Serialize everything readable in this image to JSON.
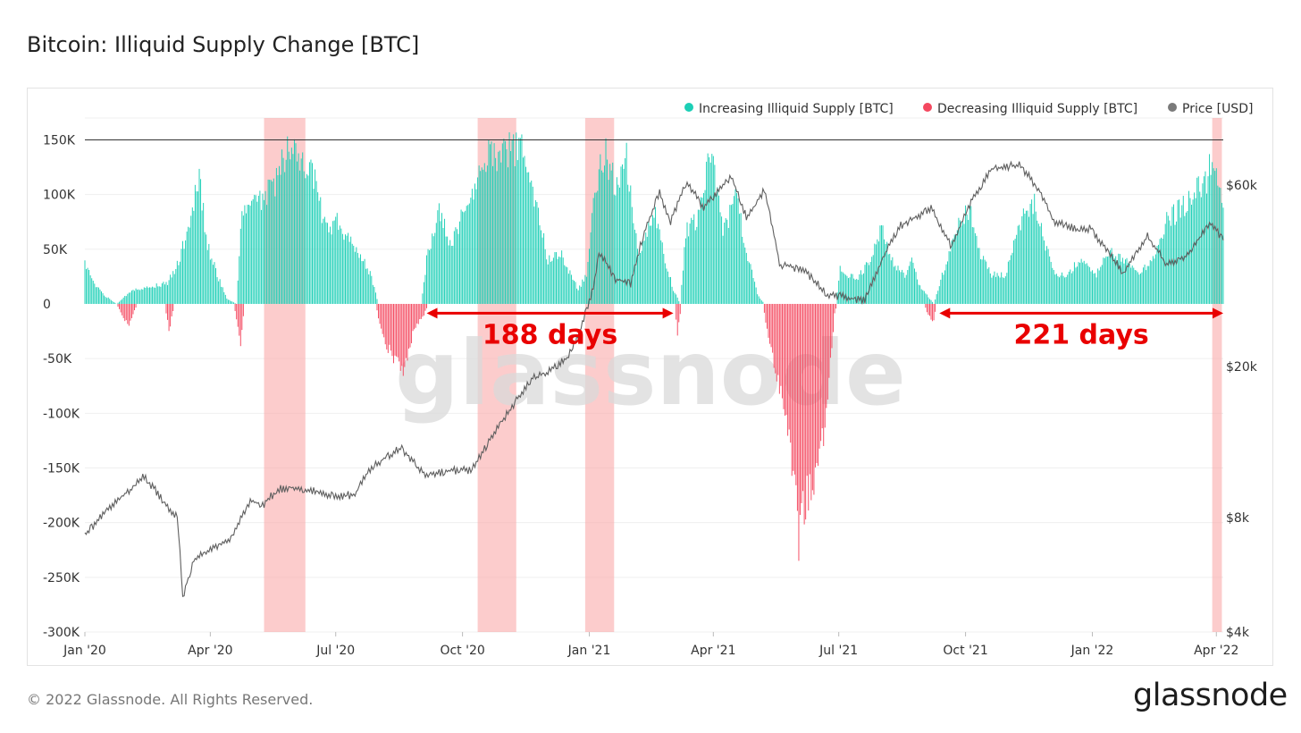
{
  "header": {
    "title": "Bitcoin: Illiquid Supply Change [BTC]"
  },
  "footer": {
    "copyright": "© 2022 Glassnode. All Rights Reserved.",
    "brand": "glassnode"
  },
  "watermark": "glassnode",
  "colors": {
    "increasing": "#1ccfb6",
    "decreasing": "#f4485f",
    "price": "#7a7a7a",
    "highlight": "#f9a3a3",
    "annotation": "#e90000"
  },
  "chart_data": {
    "type": "bar",
    "title": "Bitcoin: Illiquid Supply Change [BTC]",
    "x_range": [
      "2020-01-01",
      "2022-04-06"
    ],
    "x_ticks": [
      {
        "label": "Jan '20",
        "date": "2020-01-01"
      },
      {
        "label": "Apr '20",
        "date": "2020-04-01"
      },
      {
        "label": "Jul '20",
        "date": "2020-07-01"
      },
      {
        "label": "Oct '20",
        "date": "2020-10-01"
      },
      {
        "label": "Jan '21",
        "date": "2021-01-01"
      },
      {
        "label": "Apr '21",
        "date": "2021-04-01"
      },
      {
        "label": "Jul '21",
        "date": "2021-07-01"
      },
      {
        "label": "Oct '21",
        "date": "2021-10-01"
      },
      {
        "label": "Jan '22",
        "date": "2022-01-01"
      },
      {
        "label": "Apr '22",
        "date": "2022-04-01"
      }
    ],
    "y_left": {
      "range": [
        -300000,
        170000
      ],
      "ticks": [
        {
          "label": "150K",
          "value": 150000
        },
        {
          "label": "100K",
          "value": 100000
        },
        {
          "label": "50K",
          "value": 50000
        },
        {
          "label": "0",
          "value": 0
        },
        {
          "label": "-50K",
          "value": -50000
        },
        {
          "label": "-100K",
          "value": -100000
        },
        {
          "label": "-150K",
          "value": -150000
        },
        {
          "label": "-200K",
          "value": -200000
        },
        {
          "label": "-250K",
          "value": -250000
        },
        {
          "label": "-300K",
          "value": -300000
        }
      ]
    },
    "y_right": {
      "scale": "log",
      "range": [
        4000,
        90000
      ],
      "ticks": [
        {
          "label": "$60k",
          "value": 60000
        },
        {
          "label": "$20k",
          "value": 20000
        },
        {
          "label": "$8k",
          "value": 8000
        },
        {
          "label": "$4k",
          "value": 4000
        }
      ]
    },
    "reference_line": 150000,
    "legend_position": "top-right",
    "series": [
      {
        "name": "Increasing Illiquid Supply [BTC]",
        "kind": "bar",
        "anchors": [
          [
            "2020-01-01",
            40000
          ],
          [
            "2020-01-08",
            20000
          ],
          [
            "2020-01-16",
            8000
          ],
          [
            "2020-01-24",
            0
          ],
          [
            "2020-02-05",
            15000
          ],
          [
            "2020-02-20",
            18000
          ],
          [
            "2020-03-01",
            22000
          ],
          [
            "2020-03-10",
            45000
          ],
          [
            "2020-03-18",
            95000
          ],
          [
            "2020-03-24",
            125000
          ],
          [
            "2020-03-30",
            60000
          ],
          [
            "2020-04-06",
            30000
          ],
          [
            "2020-04-13",
            5000
          ],
          [
            "2020-04-20",
            0
          ],
          [
            "2020-04-24",
            95000
          ],
          [
            "2020-05-06",
            105000
          ],
          [
            "2020-05-18",
            125000
          ],
          [
            "2020-05-28",
            160000
          ],
          [
            "2020-06-08",
            145000
          ],
          [
            "2020-06-16",
            125000
          ],
          [
            "2020-06-24",
            75000
          ],
          [
            "2020-07-02",
            85000
          ],
          [
            "2020-07-14",
            60000
          ],
          [
            "2020-07-26",
            32000
          ],
          [
            "2020-08-01",
            0
          ],
          [
            "2020-09-01",
            0
          ],
          [
            "2020-09-05",
            45000
          ],
          [
            "2020-09-14",
            100000
          ],
          [
            "2020-09-22",
            60000
          ],
          [
            "2020-10-08",
            115000
          ],
          [
            "2020-10-20",
            150000
          ],
          [
            "2020-11-05",
            160000
          ],
          [
            "2020-11-15",
            160000
          ],
          [
            "2020-11-24",
            100000
          ],
          [
            "2020-12-02",
            45000
          ],
          [
            "2020-12-12",
            50000
          ],
          [
            "2020-12-24",
            15000
          ],
          [
            "2020-12-30",
            30000
          ],
          [
            "2021-01-04",
            100000
          ],
          [
            "2021-01-12",
            160000
          ],
          [
            "2021-01-20",
            120000
          ],
          [
            "2021-01-28",
            150000
          ],
          [
            "2021-02-06",
            50000
          ],
          [
            "2021-02-18",
            95000
          ],
          [
            "2021-02-26",
            40000
          ],
          [
            "2021-03-03",
            15000
          ],
          [
            "2021-03-08",
            0
          ],
          [
            "2021-03-12",
            75000
          ],
          [
            "2021-03-22",
            90000
          ],
          [
            "2021-03-30",
            155000
          ],
          [
            "2021-04-08",
            75000
          ],
          [
            "2021-04-18",
            110000
          ],
          [
            "2021-04-24",
            60000
          ],
          [
            "2021-05-03",
            10000
          ],
          [
            "2021-05-08",
            0
          ],
          [
            "2021-06-29",
            0
          ],
          [
            "2021-07-02",
            35000
          ],
          [
            "2021-07-14",
            25000
          ],
          [
            "2021-07-24",
            45000
          ],
          [
            "2021-08-01",
            80000
          ],
          [
            "2021-08-08",
            45000
          ],
          [
            "2021-08-18",
            30000
          ],
          [
            "2021-08-24",
            45000
          ],
          [
            "2021-08-28",
            20000
          ],
          [
            "2021-09-08",
            0
          ],
          [
            "2021-09-13",
            25000
          ],
          [
            "2021-09-26",
            85000
          ],
          [
            "2021-10-04",
            100000
          ],
          [
            "2021-10-10",
            55000
          ],
          [
            "2021-10-20",
            30000
          ],
          [
            "2021-10-30",
            30000
          ],
          [
            "2021-11-10",
            85000
          ],
          [
            "2021-11-20",
            105000
          ],
          [
            "2021-11-28",
            60000
          ],
          [
            "2021-12-06",
            30000
          ],
          [
            "2021-12-14",
            30000
          ],
          [
            "2021-12-22",
            45000
          ],
          [
            "2022-01-04",
            30000
          ],
          [
            "2022-01-14",
            55000
          ],
          [
            "2022-01-24",
            45000
          ],
          [
            "2022-02-04",
            30000
          ],
          [
            "2022-02-14",
            45000
          ],
          [
            "2022-02-24",
            85000
          ],
          [
            "2022-03-04",
            95000
          ],
          [
            "2022-03-14",
            110000
          ],
          [
            "2022-03-24",
            125000
          ],
          [
            "2022-03-30",
            150000
          ],
          [
            "2022-04-06",
            90000
          ]
        ]
      },
      {
        "name": "Decreasing Illiquid Supply [BTC]",
        "kind": "bar",
        "anchors": [
          [
            "2020-01-24",
            0
          ],
          [
            "2020-01-28",
            -12000
          ],
          [
            "2020-02-02",
            -22000
          ],
          [
            "2020-02-08",
            0
          ],
          [
            "2020-02-28",
            0
          ],
          [
            "2020-03-02",
            -28000
          ],
          [
            "2020-03-06",
            0
          ],
          [
            "2020-04-18",
            0
          ],
          [
            "2020-04-20",
            -15000
          ],
          [
            "2020-04-23",
            -40000
          ],
          [
            "2020-04-26",
            0
          ],
          [
            "2020-07-30",
            0
          ],
          [
            "2020-08-04",
            -35000
          ],
          [
            "2020-08-12",
            -55000
          ],
          [
            "2020-08-20",
            -68000
          ],
          [
            "2020-08-27",
            -25000
          ],
          [
            "2020-09-03",
            -12000
          ],
          [
            "2020-09-06",
            0
          ],
          [
            "2021-03-04",
            0
          ],
          [
            "2021-03-06",
            -30000
          ],
          [
            "2021-03-09",
            0
          ],
          [
            "2021-05-07",
            0
          ],
          [
            "2021-05-11",
            -35000
          ],
          [
            "2021-05-20",
            -90000
          ],
          [
            "2021-05-28",
            -160000
          ],
          [
            "2021-06-02",
            -235000
          ],
          [
            "2021-06-08",
            -200000
          ],
          [
            "2021-06-15",
            -180000
          ],
          [
            "2021-06-22",
            -110000
          ],
          [
            "2021-06-28",
            -10000
          ],
          [
            "2021-06-30",
            0
          ],
          [
            "2021-09-01",
            0
          ],
          [
            "2021-09-04",
            -12000
          ],
          [
            "2021-09-08",
            -18000
          ],
          [
            "2021-09-10",
            0
          ]
        ]
      },
      {
        "name": "Price [USD]",
        "kind": "line",
        "axis": "right",
        "anchors": [
          [
            "2020-01-01",
            7200
          ],
          [
            "2020-01-10",
            7800
          ],
          [
            "2020-01-20",
            8600
          ],
          [
            "2020-02-05",
            9600
          ],
          [
            "2020-02-13",
            10300
          ],
          [
            "2020-02-28",
            8700
          ],
          [
            "2020-03-08",
            8000
          ],
          [
            "2020-03-12",
            4900
          ],
          [
            "2020-03-20",
            6200
          ],
          [
            "2020-04-01",
            6600
          ],
          [
            "2020-04-15",
            7000
          ],
          [
            "2020-04-30",
            8800
          ],
          [
            "2020-05-10",
            8700
          ],
          [
            "2020-05-20",
            9500
          ],
          [
            "2020-06-01",
            9600
          ],
          [
            "2020-06-15",
            9400
          ],
          [
            "2020-07-01",
            9100
          ],
          [
            "2020-07-15",
            9200
          ],
          [
            "2020-07-27",
            10900
          ],
          [
            "2020-08-10",
            11700
          ],
          [
            "2020-08-17",
            12200
          ],
          [
            "2020-09-04",
            10300
          ],
          [
            "2020-09-20",
            10600
          ],
          [
            "2020-10-08",
            10700
          ],
          [
            "2020-10-21",
            12800
          ],
          [
            "2020-11-05",
            15500
          ],
          [
            "2020-11-20",
            18500
          ],
          [
            "2020-12-01",
            19200
          ],
          [
            "2020-12-16",
            21000
          ],
          [
            "2020-12-25",
            24500
          ],
          [
            "2021-01-04",
            32000
          ],
          [
            "2021-01-08",
            40000
          ],
          [
            "2021-01-20",
            34000
          ],
          [
            "2021-01-31",
            33000
          ],
          [
            "2021-02-10",
            45000
          ],
          [
            "2021-02-21",
            57000
          ],
          [
            "2021-03-01",
            48000
          ],
          [
            "2021-03-13",
            61000
          ],
          [
            "2021-03-25",
            52000
          ],
          [
            "2021-04-14",
            63000
          ],
          [
            "2021-04-25",
            49000
          ],
          [
            "2021-05-08",
            58000
          ],
          [
            "2021-05-19",
            37000
          ],
          [
            "2021-06-05",
            36000
          ],
          [
            "2021-06-22",
            31000
          ],
          [
            "2021-07-20",
            29800
          ],
          [
            "2021-08-15",
            47000
          ],
          [
            "2021-09-06",
            52000
          ],
          [
            "2021-09-21",
            41000
          ],
          [
            "2021-10-06",
            55000
          ],
          [
            "2021-10-20",
            66000
          ],
          [
            "2021-11-09",
            68000
          ],
          [
            "2021-11-25",
            57000
          ],
          [
            "2021-12-04",
            48000
          ],
          [
            "2021-12-20",
            46000
          ],
          [
            "2021-12-31",
            46000
          ],
          [
            "2022-01-10",
            41000
          ],
          [
            "2022-01-24",
            35000
          ],
          [
            "2022-02-10",
            44000
          ],
          [
            "2022-02-24",
            37000
          ],
          [
            "2022-03-10",
            39000
          ],
          [
            "2022-03-28",
            47500
          ],
          [
            "2022-04-06",
            43000
          ]
        ]
      }
    ],
    "highlight_bands": [
      [
        "2020-05-10",
        "2020-06-09"
      ],
      [
        "2020-10-12",
        "2020-11-09"
      ],
      [
        "2020-12-29",
        "2021-01-19"
      ],
      [
        "2022-03-29",
        "2022-04-05"
      ]
    ],
    "annotations": [
      {
        "text": "188 days",
        "from": "2020-09-05",
        "to": "2021-03-03",
        "y": -15000
      },
      {
        "text": "221 days",
        "from": "2021-09-12",
        "to": "2022-04-06",
        "y": -15000
      }
    ]
  }
}
